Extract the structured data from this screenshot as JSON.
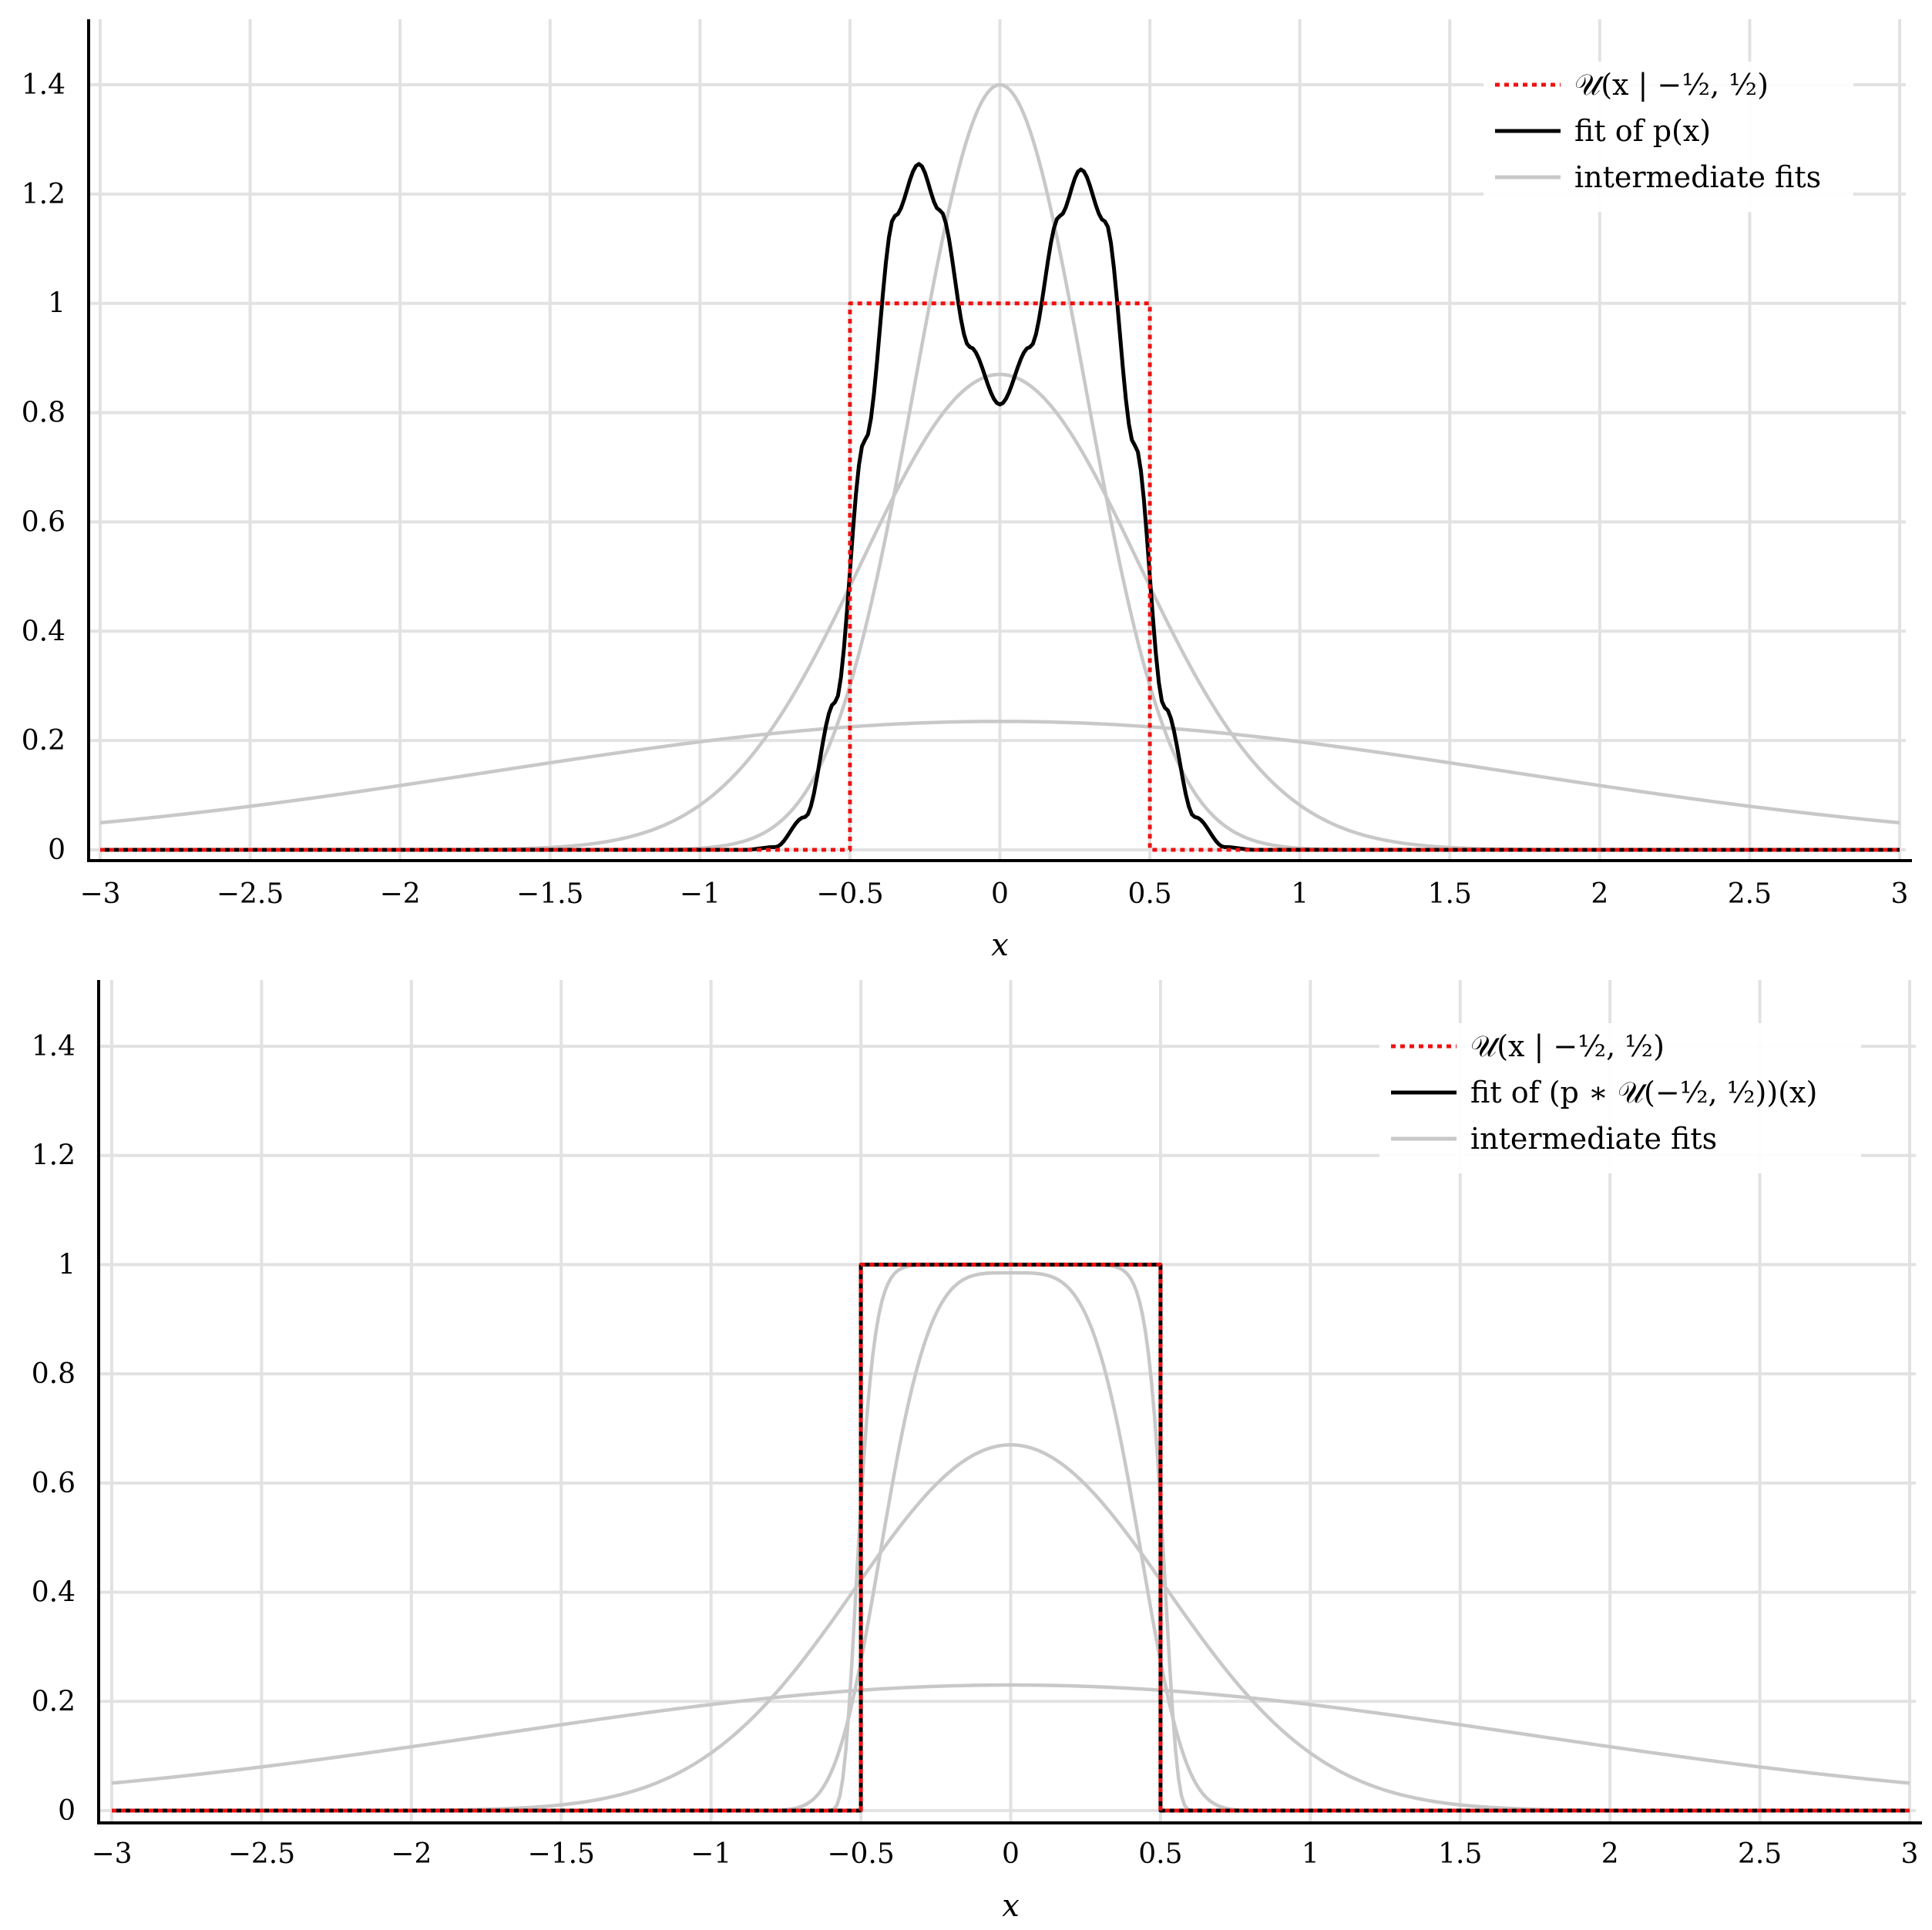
{
  "chart_data": [
    {
      "type": "line",
      "xlabel": "x",
      "ylabel": "",
      "xlim": [
        -3,
        3
      ],
      "ylim": [
        0,
        1.5
      ],
      "x_ticks": [
        "−3",
        "−2.5",
        "−2",
        "−1.5",
        "−1",
        "−0.5",
        "0",
        "0.5",
        "1",
        "1.5",
        "2",
        "2.5",
        "3"
      ],
      "y_ticks": [
        "0",
        "0.2",
        "0.4",
        "0.6",
        "0.8",
        "1",
        "1.2",
        "1.4"
      ],
      "grid": true,
      "legend_position": "top-right",
      "legend": [
        {
          "label": "𝒰(x | −½, ½)",
          "style": "dotted",
          "color": "#ee1111"
        },
        {
          "label": "fit of p(x)",
          "style": "solid",
          "color": "#000000"
        },
        {
          "label": "intermediate fits",
          "style": "solid",
          "color": "#c8c8c8"
        }
      ],
      "series": [
        {
          "name": "intermediate fits",
          "kind": "gaussian",
          "center": 0,
          "sigma": 1.7,
          "peak": 0.235
        },
        {
          "name": "intermediate fits",
          "kind": "gaussian",
          "center": 0,
          "sigma": 0.46,
          "peak": 0.87
        },
        {
          "name": "intermediate fits",
          "kind": "gaussian",
          "center": 0,
          "sigma": 0.285,
          "peak": 1.4
        },
        {
          "name": "fit of p(x)",
          "kind": "bimodal",
          "points": [
            [
              -3,
              0
            ],
            [
              -0.85,
              0
            ],
            [
              -0.75,
              0.005
            ],
            [
              -0.65,
              0.06
            ],
            [
              -0.55,
              0.27
            ],
            [
              -0.45,
              0.75
            ],
            [
              -0.35,
              1.16
            ],
            [
              -0.27,
              1.255
            ],
            [
              -0.2,
              1.17
            ],
            [
              -0.1,
              0.92
            ],
            [
              0,
              0.815
            ],
            [
              0.1,
              0.92
            ],
            [
              0.2,
              1.16
            ],
            [
              0.27,
              1.245
            ],
            [
              0.35,
              1.15
            ],
            [
              0.45,
              0.74
            ],
            [
              0.55,
              0.26
            ],
            [
              0.65,
              0.06
            ],
            [
              0.75,
              0.005
            ],
            [
              0.85,
              0
            ],
            [
              3,
              0
            ]
          ]
        },
        {
          "name": "𝒰(x | −½, ½)",
          "kind": "uniform",
          "low": -0.5,
          "high": 0.5,
          "height": 1
        }
      ]
    },
    {
      "type": "line",
      "xlabel": "x",
      "ylabel": "",
      "xlim": [
        -3,
        3
      ],
      "ylim": [
        0,
        1.5
      ],
      "x_ticks": [
        "−3",
        "−2.5",
        "−2",
        "−1.5",
        "−1",
        "−0.5",
        "0",
        "0.5",
        "1",
        "1.5",
        "2",
        "2.5",
        "3"
      ],
      "y_ticks": [
        "0",
        "0.2",
        "0.4",
        "0.6",
        "0.8",
        "1",
        "1.2",
        "1.4"
      ],
      "grid": true,
      "legend_position": "top-right",
      "legend": [
        {
          "label": "𝒰(x | −½, ½)",
          "style": "dotted",
          "color": "#ee1111"
        },
        {
          "label": "fit of (p ∗ 𝒰(−½, ½))(x)",
          "style": "solid",
          "color": "#000000"
        },
        {
          "label": "intermediate fits",
          "style": "solid",
          "color": "#c8c8c8"
        }
      ],
      "series": [
        {
          "name": "intermediate fits",
          "kind": "gaussian",
          "center": 0,
          "sigma": 1.72,
          "peak": 0.23
        },
        {
          "name": "intermediate fits",
          "kind": "gaussian",
          "center": 0,
          "sigma": 0.52,
          "peak": 0.67
        },
        {
          "name": "intermediate fits",
          "kind": "supergauss",
          "center": 0,
          "width": 0.47,
          "power": 4,
          "peak": 0.985
        },
        {
          "name": "intermediate fits",
          "kind": "supergauss",
          "center": 0,
          "width": 0.52,
          "power": 14,
          "peak": 1.0
        },
        {
          "name": "fit of (p ∗ 𝒰(−½, ½))(x)",
          "kind": "uniform",
          "low": -0.5,
          "high": 0.5,
          "height": 1
        },
        {
          "name": "𝒰(x | −½, ½)",
          "kind": "uniform",
          "low": -0.5,
          "high": 0.5,
          "height": 1
        }
      ]
    }
  ]
}
